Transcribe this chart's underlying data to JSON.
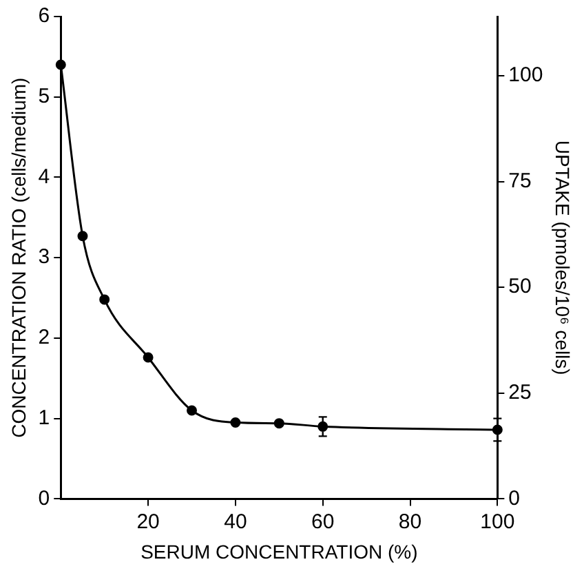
{
  "chart_data": {
    "type": "line",
    "xlabel": "SERUM CONCENTRATION (%)",
    "ylabel": "CONCENTRATION RATIO (cells/medium)",
    "y2label": "UPTAKE (pmoles/10⁶ cells)",
    "x": [
      0,
      5,
      10,
      20,
      30,
      40,
      50,
      60,
      100
    ],
    "series": [
      {
        "color": "#000000",
        "values": [
          5.4,
          3.27,
          2.48,
          1.76,
          1.1,
          0.95,
          0.94,
          0.9,
          0.86
        ],
        "errors": [
          null,
          null,
          null,
          null,
          null,
          null,
          null,
          0.12,
          0.14
        ]
      }
    ],
    "xlim": [
      0,
      100
    ],
    "xticks": [
      20,
      40,
      60,
      80,
      100
    ],
    "ylim": [
      0,
      6
    ],
    "yticks": [
      0,
      1,
      2,
      3,
      4,
      5,
      6
    ],
    "y2lim": [
      0,
      114
    ],
    "y2ticks": [
      0,
      25,
      50,
      75,
      100
    ],
    "marker": "circle",
    "line_style": "solid"
  }
}
